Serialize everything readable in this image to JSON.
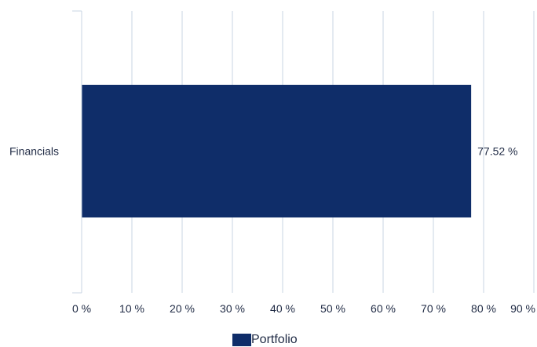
{
  "chart_data": {
    "type": "bar",
    "orientation": "horizontal",
    "categories": [
      "Financials"
    ],
    "series": [
      {
        "name": "Portfolio",
        "values": [
          77.52
        ],
        "color": "#0f2d69"
      }
    ],
    "data_labels": [
      "77.52 %"
    ],
    "xlim": [
      0,
      90
    ],
    "x_ticks": [
      0,
      10,
      20,
      30,
      40,
      50,
      60,
      70,
      80,
      90
    ],
    "x_tick_labels": [
      "0 %",
      "10 %",
      "20 %",
      "30 %",
      "40 %",
      "50 %",
      "60 %",
      "70 %",
      "80 %",
      "90 %"
    ],
    "grid": true,
    "grid_color": "#c9d6e3",
    "legend_position": "bottom-center"
  }
}
